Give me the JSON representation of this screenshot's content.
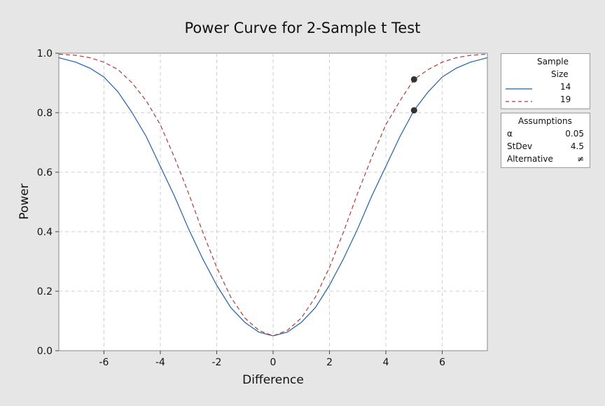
{
  "chart_data": {
    "type": "line",
    "title": "Power Curve for 2-Sample t Test",
    "xlabel": "Difference",
    "ylabel": "Power",
    "xlim": [
      -7.6,
      7.6
    ],
    "ylim": [
      0.0,
      1.0
    ],
    "x_ticks": [
      -6,
      -4,
      -2,
      0,
      2,
      4,
      6
    ],
    "x_tick_labels": [
      "-6",
      "-4",
      "-2",
      "0",
      "2",
      "4",
      "6"
    ],
    "y_ticks": [
      0.0,
      0.2,
      0.4,
      0.6,
      0.8,
      1.0
    ],
    "y_tick_labels": [
      "0.0",
      "0.2",
      "0.4",
      "0.6",
      "0.8",
      "1.0"
    ],
    "grid": true,
    "legend_position": "right",
    "series": [
      {
        "name": "14",
        "color": "#1f5fa6",
        "style": "solid",
        "x": [
          -7.6,
          -7.0,
          -6.5,
          -6.0,
          -5.5,
          -5.0,
          -4.5,
          -4.0,
          -3.5,
          -3.0,
          -2.5,
          -2.0,
          -1.5,
          -1.0,
          -0.5,
          0.0,
          0.5,
          1.0,
          1.5,
          2.0,
          2.5,
          3.0,
          3.5,
          4.0,
          4.5,
          5.0,
          5.5,
          6.0,
          6.5,
          7.0,
          7.6
        ],
        "y": [
          0.985,
          0.97,
          0.95,
          0.92,
          0.87,
          0.8,
          0.72,
          0.62,
          0.52,
          0.41,
          0.31,
          0.22,
          0.145,
          0.095,
          0.062,
          0.05,
          0.062,
          0.095,
          0.145,
          0.22,
          0.31,
          0.41,
          0.52,
          0.62,
          0.72,
          0.808,
          0.87,
          0.92,
          0.95,
          0.97,
          0.985
        ]
      },
      {
        "name": "19",
        "color": "#b03a3a",
        "style": "dashed",
        "x": [
          -7.6,
          -7.0,
          -6.5,
          -6.0,
          -5.5,
          -5.0,
          -4.5,
          -4.0,
          -3.5,
          -3.0,
          -2.5,
          -2.0,
          -1.5,
          -1.0,
          -0.5,
          0.0,
          0.5,
          1.0,
          1.5,
          2.0,
          2.5,
          3.0,
          3.5,
          4.0,
          4.5,
          5.0,
          5.5,
          6.0,
          6.5,
          7.0,
          7.6
        ],
        "y": [
          0.997,
          0.993,
          0.985,
          0.97,
          0.945,
          0.9,
          0.84,
          0.76,
          0.65,
          0.53,
          0.4,
          0.28,
          0.18,
          0.11,
          0.068,
          0.05,
          0.068,
          0.11,
          0.18,
          0.28,
          0.4,
          0.53,
          0.65,
          0.76,
          0.84,
          0.912,
          0.945,
          0.97,
          0.985,
          0.993,
          0.997
        ]
      }
    ],
    "points": [
      {
        "x": 5.0,
        "y": 0.912,
        "series": "19"
      },
      {
        "x": 5.0,
        "y": 0.808,
        "series": "14"
      }
    ]
  },
  "legend": {
    "sample_title_line1": "Sample",
    "sample_title_line2": "Size",
    "items": [
      "14",
      "19"
    ]
  },
  "assumptions": {
    "title": "Assumptions",
    "rows": [
      {
        "label": "α",
        "value": "0.05"
      },
      {
        "label": "StDev",
        "value": "4.5"
      },
      {
        "label": "Alternative",
        "value": "≠"
      }
    ]
  }
}
